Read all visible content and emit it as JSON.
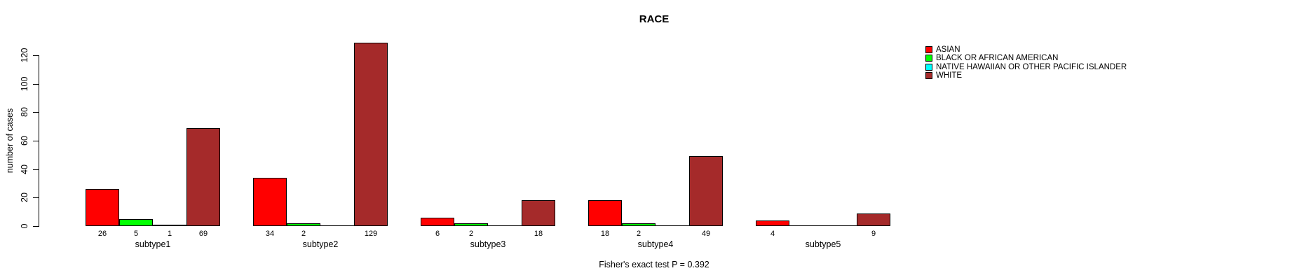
{
  "figure": {
    "background": "#ffffff",
    "bar_border_color": "#000000"
  },
  "chart_data": {
    "type": "bar",
    "title": "RACE",
    "ylabel": "number of cases",
    "xlabel": "",
    "annotation": "Fisher's exact test P = 0.392",
    "categories": [
      "subtype1",
      "subtype2",
      "subtype3",
      "subtype4",
      "subtype5"
    ],
    "series": [
      {
        "name": "ASIAN",
        "color": "#ff0000",
        "values": [
          26,
          34,
          6,
          18,
          4
        ]
      },
      {
        "name": "BLACK OR AFRICAN AMERICAN",
        "color": "#00ff00",
        "values": [
          5,
          2,
          2,
          2,
          0
        ]
      },
      {
        "name": "NATIVE HAWAIIAN OR OTHER PACIFIC ISLANDER",
        "color": "#00ffff",
        "values": [
          1,
          0,
          0,
          0,
          0
        ]
      },
      {
        "name": "WHITE",
        "color": "#a52a2a",
        "values": [
          69,
          129,
          18,
          49,
          9
        ]
      }
    ],
    "yticks": [
      0,
      20,
      40,
      60,
      80,
      100,
      120
    ],
    "ylim": [
      0,
      130
    ],
    "grid": false,
    "legend_position": "top-right",
    "bar_value_labels": "nonzero values shown below bars"
  }
}
